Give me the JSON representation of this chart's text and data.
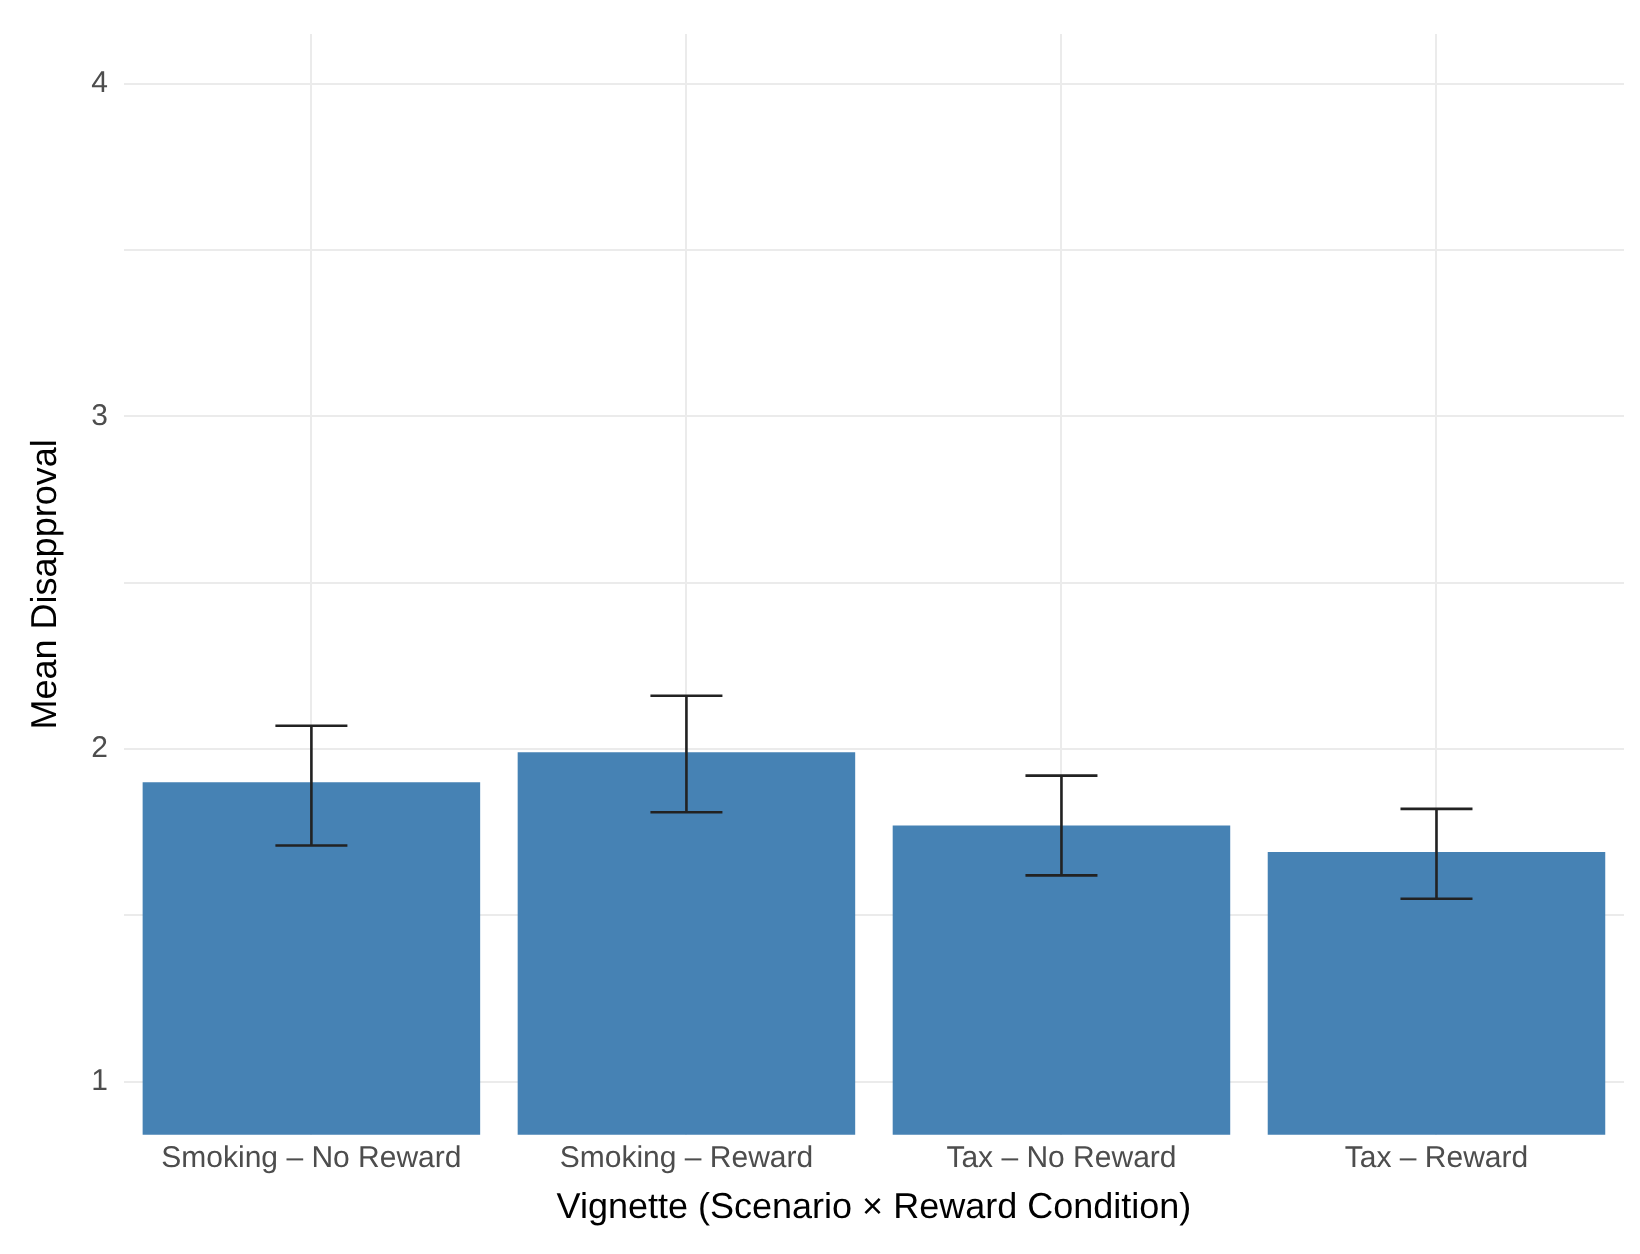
{
  "chart_data": {
    "type": "bar",
    "xlabel": "Vignette (Scenario × Reward Condition)",
    "ylabel": "Mean Disapproval",
    "categories": [
      "Smoking – No Reward",
      "Smoking – Reward",
      "Tax – No Reward",
      "Tax – Reward"
    ],
    "values": [
      1.9,
      1.99,
      1.77,
      1.69
    ],
    "errors": [
      [
        1.71,
        2.07
      ],
      [
        1.81,
        2.16
      ],
      [
        1.62,
        1.92
      ],
      [
        1.55,
        1.82
      ]
    ],
    "color": "#4682b4",
    "ylim": [
      0.84,
      4.15
    ],
    "yticks": [
      1,
      {
        "value": 1.5,
        "label": null
      },
      2,
      {
        "value": 2.5,
        "label": null
      },
      3,
      {
        "value": 3.5,
        "label": null
      },
      4
    ],
    "grid": true
  }
}
